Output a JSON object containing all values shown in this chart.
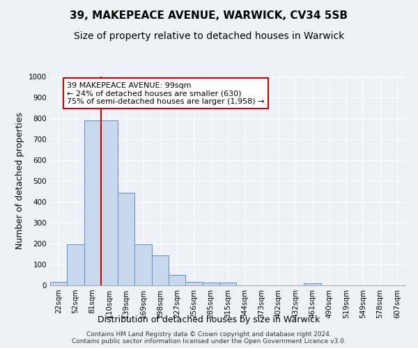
{
  "title": "39, MAKEPEACE AVENUE, WARWICK, CV34 5SB",
  "subtitle": "Size of property relative to detached houses in Warwick",
  "xlabel": "Distribution of detached houses by size in Warwick",
  "ylabel": "Number of detached properties",
  "bar_labels": [
    "22sqm",
    "52sqm",
    "81sqm",
    "110sqm",
    "139sqm",
    "169sqm",
    "198sqm",
    "227sqm",
    "256sqm",
    "285sqm",
    "315sqm",
    "344sqm",
    "373sqm",
    "402sqm",
    "432sqm",
    "461sqm",
    "490sqm",
    "519sqm",
    "549sqm",
    "578sqm",
    "607sqm"
  ],
  "bar_values": [
    18,
    197,
    790,
    790,
    443,
    197,
    143,
    50,
    18,
    12,
    12,
    0,
    0,
    0,
    0,
    10,
    0,
    0,
    0,
    0,
    0
  ],
  "bar_color": "#c8d9ed",
  "bar_edge_color": "#5b8fc9",
  "vline_x_idx": 2,
  "vline_color": "#cc0000",
  "ylim": [
    0,
    1000
  ],
  "yticks": [
    0,
    100,
    200,
    300,
    400,
    500,
    600,
    700,
    800,
    900,
    1000
  ],
  "annotation_line1": "39 MAKEPEACE AVENUE: 99sqm",
  "annotation_line2": "← 24% of detached houses are smaller (630)",
  "annotation_line3": "75% of semi-detached houses are larger (1,958) →",
  "annotation_box_color": "#ffffff",
  "annotation_box_edge": "#cc0000",
  "footer_text": "Contains HM Land Registry data © Crown copyright and database right 2024.\nContains public sector information licensed under the Open Government Licence v3.0.",
  "background_color": "#eef2f8",
  "grid_color": "#ffffff",
  "title_fontsize": 11,
  "subtitle_fontsize": 10,
  "axis_label_fontsize": 9,
  "tick_fontsize": 7.5,
  "footer_fontsize": 6.5,
  "annotation_fontsize": 8
}
